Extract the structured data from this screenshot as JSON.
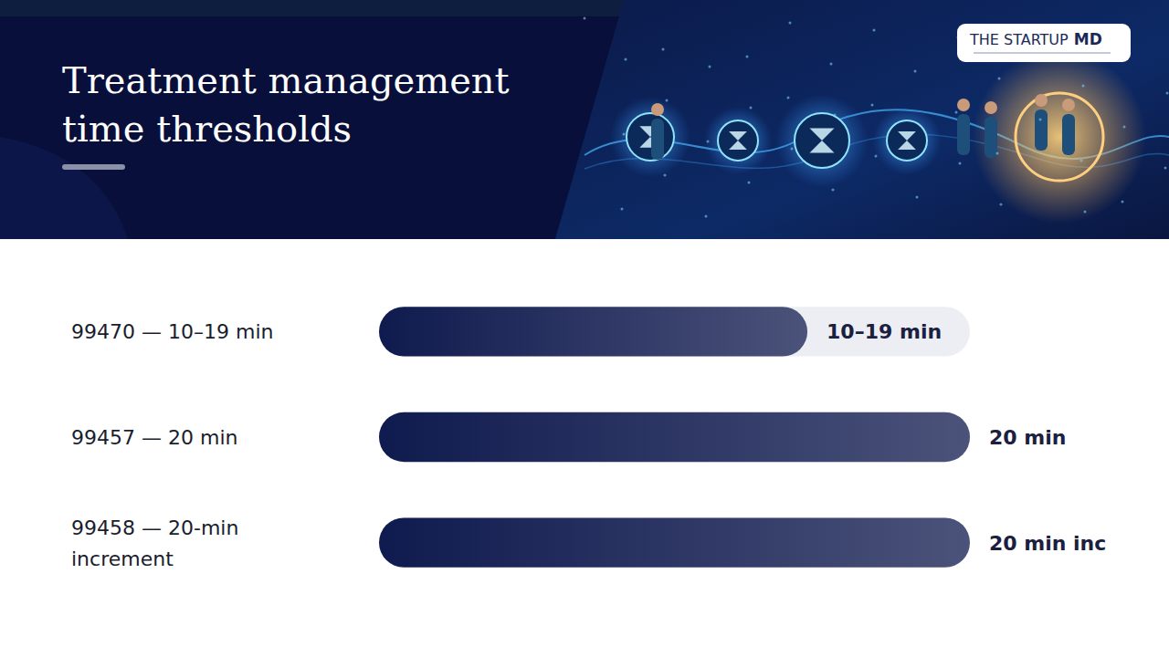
{
  "header": {
    "logo": [
      "THE STARTUP",
      "MD"
    ]
  },
  "chart_data": {
    "type": "bar",
    "orientation": "horizontal",
    "title": "Treatment management time thresholds",
    "categories": [
      "99470 — 10–19 min",
      "99457 — 20 min",
      "99458 — 20-min increment"
    ],
    "values": [
      14.5,
      20,
      20
    ],
    "value_labels": [
      "10–19 min",
      "20 min",
      "20 min inc"
    ],
    "xlim": [
      0,
      20
    ],
    "color": "#0f1a4e",
    "data_labels": true,
    "tick_labels": false,
    "grid": false
  }
}
